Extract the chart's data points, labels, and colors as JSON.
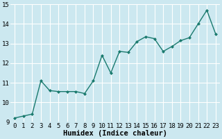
{
  "x": [
    0,
    1,
    2,
    3,
    4,
    5,
    6,
    7,
    8,
    9,
    10,
    11,
    12,
    13,
    14,
    15,
    16,
    17,
    18,
    19,
    20,
    21,
    22,
    23
  ],
  "y": [
    9.2,
    9.3,
    9.4,
    11.1,
    10.6,
    10.55,
    10.55,
    10.55,
    10.45,
    11.1,
    12.4,
    11.5,
    12.6,
    12.55,
    13.1,
    13.35,
    13.25,
    12.6,
    12.85,
    13.15,
    13.3,
    14.0,
    14.7,
    13.5
  ],
  "line_color": "#1a7a6e",
  "marker": "D",
  "marker_size": 2.0,
  "bg_color": "#cce8f0",
  "grid_color": "#ffffff",
  "xlabel": "Humidex (Indice chaleur)",
  "ylim": [
    9,
    15
  ],
  "xlim": [
    -0.5,
    23.5
  ],
  "yticks": [
    9,
    10,
    11,
    12,
    13,
    14,
    15
  ],
  "xticks": [
    0,
    1,
    2,
    3,
    4,
    5,
    6,
    7,
    8,
    9,
    10,
    11,
    12,
    13,
    14,
    15,
    16,
    17,
    18,
    19,
    20,
    21,
    22,
    23
  ],
  "xlabel_fontsize": 7.5,
  "tick_fontsize": 6.5,
  "line_width": 1.0,
  "figsize": [
    3.2,
    2.0
  ],
  "dpi": 100
}
